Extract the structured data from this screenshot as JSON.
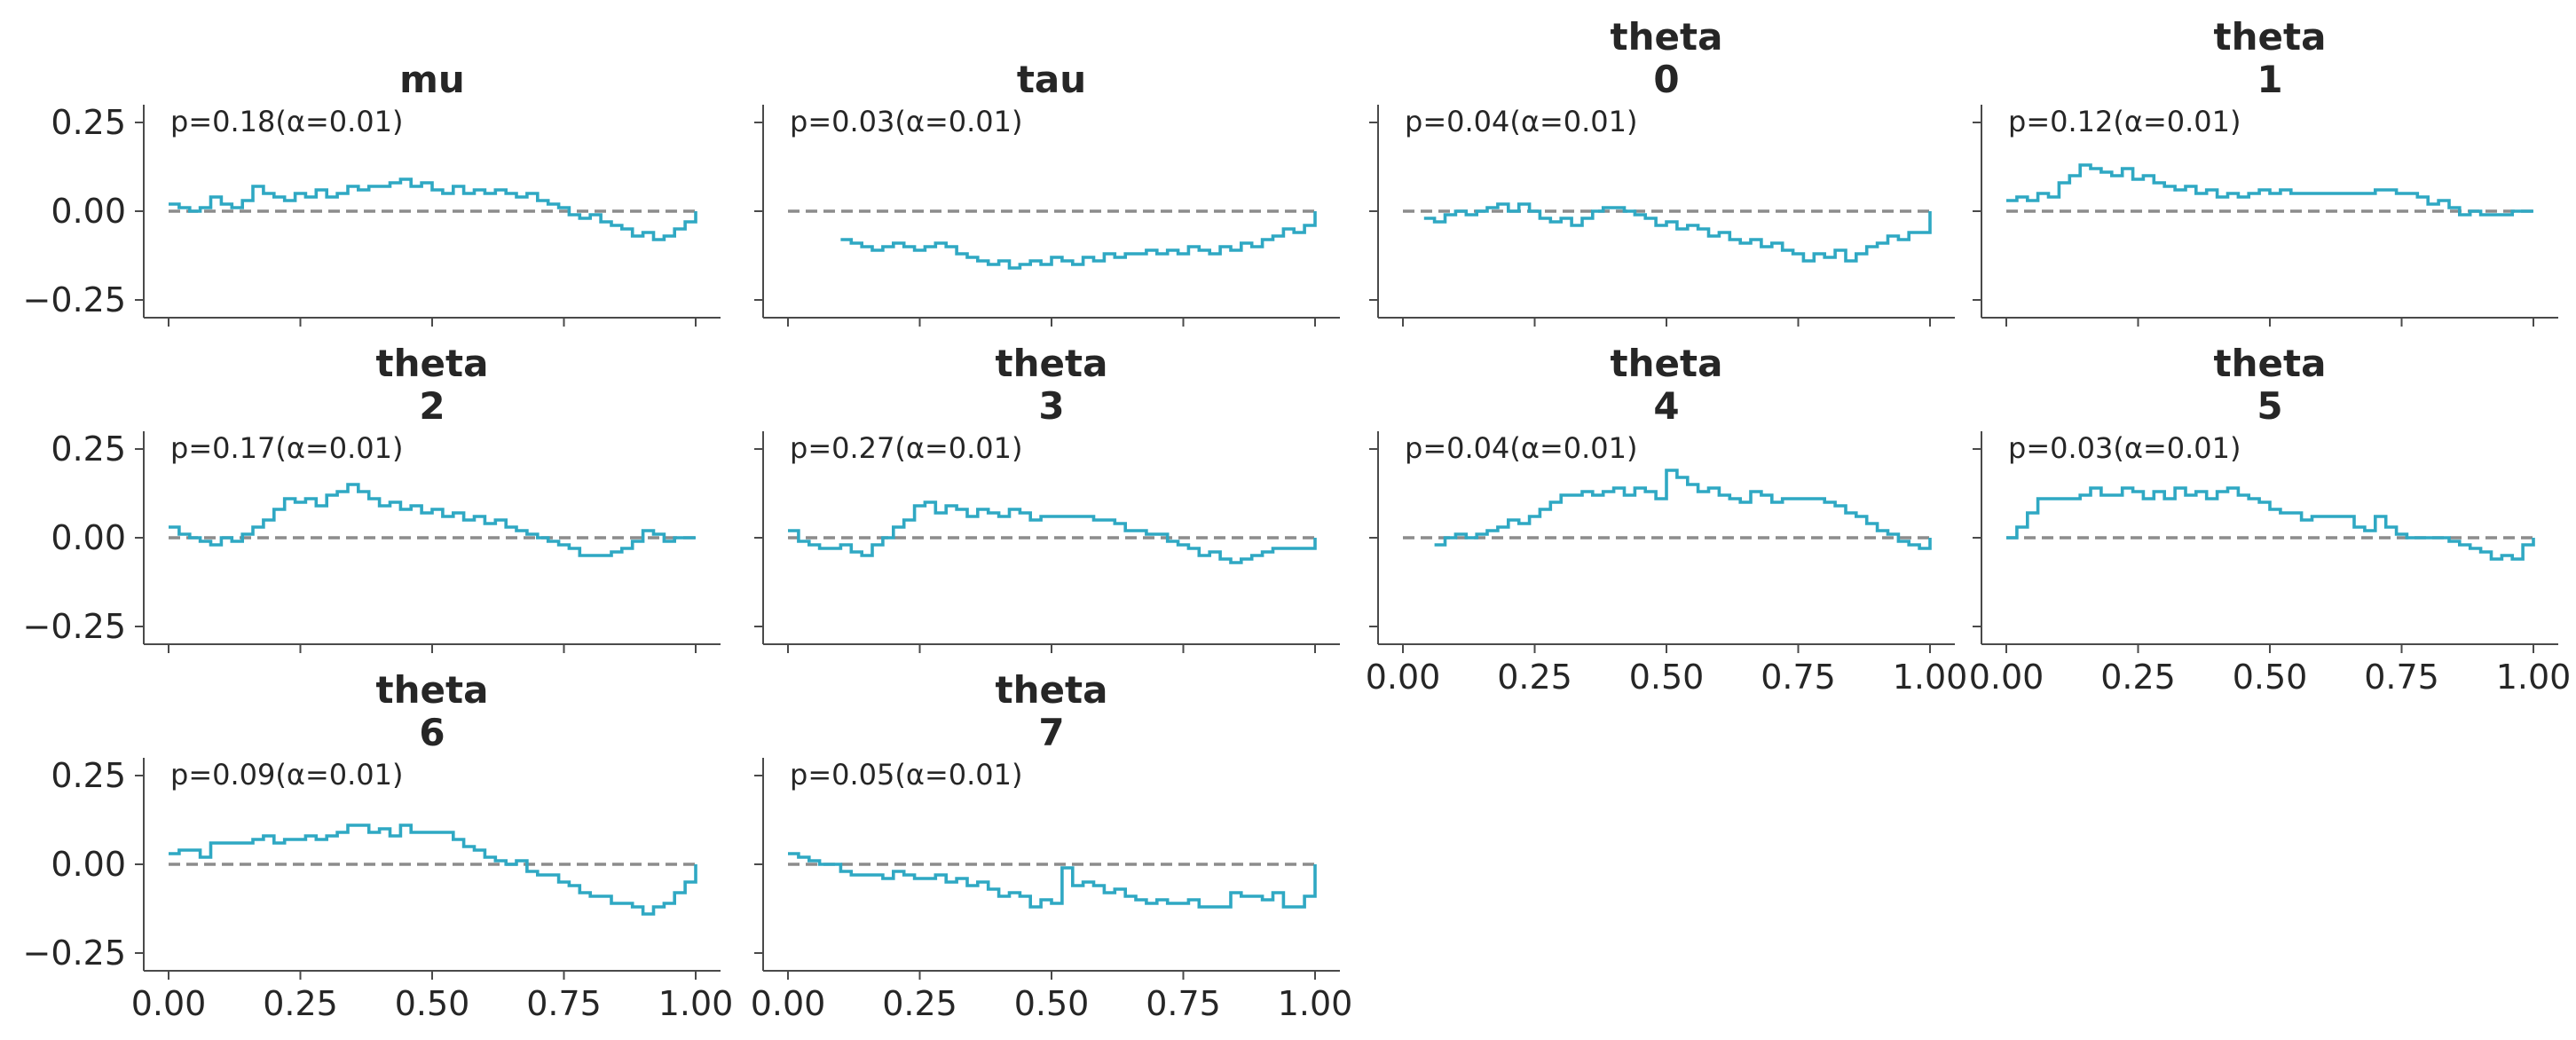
{
  "chart_data": {
    "type": "line",
    "step": true,
    "accent_color": "#2fa8c3",
    "reference_line": {
      "y": 0,
      "color": "#8c8c8c",
      "style": "dashed"
    },
    "xlim": [
      0,
      1
    ],
    "ylim": [
      -0.3,
      0.3
    ],
    "x_ticks": [
      "0.00",
      "0.25",
      "0.50",
      "0.75",
      "1.00"
    ],
    "y_ticks": [
      "0.25",
      "0.00",
      "−0.25"
    ],
    "panels": [
      {
        "title_lines": [
          "mu"
        ],
        "stat": "p=0.18(α=0.01)",
        "x": [
          0.0,
          0.02,
          0.04,
          0.06,
          0.08,
          0.1,
          0.12,
          0.14,
          0.16,
          0.18,
          0.2,
          0.22,
          0.24,
          0.26,
          0.28,
          0.3,
          0.32,
          0.34,
          0.36,
          0.38,
          0.4,
          0.42,
          0.44,
          0.46,
          0.48,
          0.5,
          0.52,
          0.54,
          0.56,
          0.58,
          0.6,
          0.62,
          0.64,
          0.66,
          0.68,
          0.7,
          0.72,
          0.74,
          0.76,
          0.78,
          0.8,
          0.82,
          0.84,
          0.86,
          0.88,
          0.9,
          0.92,
          0.94,
          0.96,
          0.98,
          1.0
        ],
        "y": [
          0.02,
          0.01,
          0.0,
          0.01,
          0.04,
          0.02,
          0.01,
          0.03,
          0.07,
          0.05,
          0.04,
          0.03,
          0.05,
          0.04,
          0.06,
          0.04,
          0.05,
          0.07,
          0.06,
          0.07,
          0.07,
          0.08,
          0.09,
          0.07,
          0.08,
          0.06,
          0.05,
          0.07,
          0.05,
          0.06,
          0.05,
          0.06,
          0.05,
          0.04,
          0.05,
          0.03,
          0.02,
          0.01,
          -0.01,
          -0.02,
          -0.01,
          -0.03,
          -0.04,
          -0.05,
          -0.07,
          -0.06,
          -0.08,
          -0.07,
          -0.05,
          -0.03,
          0.0
        ]
      },
      {
        "title_lines": [
          "tau"
        ],
        "stat": "p=0.03(α=0.01)",
        "x": [
          0.1,
          0.12,
          0.14,
          0.16,
          0.18,
          0.2,
          0.22,
          0.24,
          0.26,
          0.28,
          0.3,
          0.32,
          0.34,
          0.36,
          0.38,
          0.4,
          0.42,
          0.44,
          0.46,
          0.48,
          0.5,
          0.52,
          0.54,
          0.56,
          0.58,
          0.6,
          0.62,
          0.64,
          0.66,
          0.68,
          0.7,
          0.72,
          0.74,
          0.76,
          0.78,
          0.8,
          0.82,
          0.84,
          0.86,
          0.88,
          0.9,
          0.92,
          0.94,
          0.96,
          0.98,
          1.0
        ],
        "y": [
          -0.08,
          -0.09,
          -0.1,
          -0.11,
          -0.1,
          -0.09,
          -0.1,
          -0.11,
          -0.1,
          -0.09,
          -0.1,
          -0.12,
          -0.13,
          -0.14,
          -0.15,
          -0.14,
          -0.16,
          -0.15,
          -0.14,
          -0.15,
          -0.13,
          -0.14,
          -0.15,
          -0.13,
          -0.14,
          -0.12,
          -0.13,
          -0.12,
          -0.12,
          -0.11,
          -0.12,
          -0.11,
          -0.12,
          -0.1,
          -0.11,
          -0.12,
          -0.1,
          -0.11,
          -0.09,
          -0.1,
          -0.08,
          -0.07,
          -0.05,
          -0.06,
          -0.04,
          0.0
        ]
      },
      {
        "title_lines": [
          "theta",
          "0"
        ],
        "stat": "p=0.04(α=0.01)",
        "x": [
          0.04,
          0.06,
          0.08,
          0.1,
          0.12,
          0.14,
          0.16,
          0.18,
          0.2,
          0.22,
          0.24,
          0.26,
          0.28,
          0.3,
          0.32,
          0.34,
          0.36,
          0.38,
          0.4,
          0.42,
          0.44,
          0.46,
          0.48,
          0.5,
          0.52,
          0.54,
          0.56,
          0.58,
          0.6,
          0.62,
          0.64,
          0.66,
          0.68,
          0.7,
          0.72,
          0.74,
          0.76,
          0.78,
          0.8,
          0.82,
          0.84,
          0.86,
          0.88,
          0.9,
          0.92,
          0.94,
          0.96,
          0.98,
          1.0
        ],
        "y": [
          -0.02,
          -0.03,
          -0.01,
          0.0,
          -0.01,
          0.0,
          0.01,
          0.02,
          0.0,
          0.02,
          0.0,
          -0.02,
          -0.03,
          -0.02,
          -0.04,
          -0.02,
          0.0,
          0.01,
          0.01,
          0.0,
          -0.01,
          -0.02,
          -0.04,
          -0.03,
          -0.05,
          -0.04,
          -0.05,
          -0.07,
          -0.06,
          -0.08,
          -0.09,
          -0.08,
          -0.1,
          -0.09,
          -0.11,
          -0.12,
          -0.14,
          -0.12,
          -0.13,
          -0.11,
          -0.14,
          -0.12,
          -0.1,
          -0.09,
          -0.07,
          -0.08,
          -0.06,
          -0.06,
          0.0
        ]
      },
      {
        "title_lines": [
          "theta",
          "1"
        ],
        "stat": "p=0.12(α=0.01)",
        "x": [
          0.0,
          0.02,
          0.04,
          0.06,
          0.08,
          0.1,
          0.12,
          0.14,
          0.16,
          0.18,
          0.2,
          0.22,
          0.24,
          0.26,
          0.28,
          0.3,
          0.32,
          0.34,
          0.36,
          0.38,
          0.4,
          0.42,
          0.44,
          0.46,
          0.48,
          0.5,
          0.52,
          0.54,
          0.56,
          0.58,
          0.6,
          0.62,
          0.64,
          0.66,
          0.68,
          0.7,
          0.72,
          0.74,
          0.76,
          0.78,
          0.8,
          0.82,
          0.84,
          0.86,
          0.88,
          0.9,
          0.92,
          0.94,
          0.96,
          0.98,
          1.0
        ],
        "y": [
          0.03,
          0.04,
          0.03,
          0.05,
          0.04,
          0.08,
          0.1,
          0.13,
          0.12,
          0.11,
          0.1,
          0.12,
          0.09,
          0.1,
          0.08,
          0.07,
          0.06,
          0.07,
          0.05,
          0.06,
          0.04,
          0.05,
          0.04,
          0.05,
          0.06,
          0.05,
          0.06,
          0.05,
          0.05,
          0.05,
          0.05,
          0.05,
          0.05,
          0.05,
          0.05,
          0.06,
          0.06,
          0.05,
          0.05,
          0.04,
          0.02,
          0.03,
          0.01,
          -0.01,
          0.0,
          -0.01,
          -0.01,
          -0.01,
          0.0,
          0.0,
          0.0
        ]
      },
      {
        "title_lines": [
          "theta",
          "2"
        ],
        "stat": "p=0.17(α=0.01)",
        "x": [
          0.0,
          0.02,
          0.04,
          0.06,
          0.08,
          0.1,
          0.12,
          0.14,
          0.16,
          0.18,
          0.2,
          0.22,
          0.24,
          0.26,
          0.28,
          0.3,
          0.32,
          0.34,
          0.36,
          0.38,
          0.4,
          0.42,
          0.44,
          0.46,
          0.48,
          0.5,
          0.52,
          0.54,
          0.56,
          0.58,
          0.6,
          0.62,
          0.64,
          0.66,
          0.68,
          0.7,
          0.72,
          0.74,
          0.76,
          0.78,
          0.8,
          0.82,
          0.84,
          0.86,
          0.88,
          0.9,
          0.92,
          0.94,
          0.96,
          0.98,
          1.0
        ],
        "y": [
          0.03,
          0.01,
          0.0,
          -0.01,
          -0.02,
          0.0,
          -0.01,
          0.01,
          0.03,
          0.05,
          0.08,
          0.11,
          0.1,
          0.11,
          0.09,
          0.12,
          0.13,
          0.15,
          0.13,
          0.11,
          0.09,
          0.1,
          0.08,
          0.09,
          0.07,
          0.08,
          0.06,
          0.07,
          0.05,
          0.06,
          0.04,
          0.05,
          0.03,
          0.02,
          0.01,
          0.0,
          -0.01,
          -0.02,
          -0.03,
          -0.05,
          -0.05,
          -0.05,
          -0.04,
          -0.03,
          -0.01,
          0.02,
          0.01,
          -0.01,
          0.0,
          0.0,
          0.0
        ]
      },
      {
        "title_lines": [
          "theta",
          "3"
        ],
        "stat": "p=0.27(α=0.01)",
        "x": [
          0.0,
          0.02,
          0.04,
          0.06,
          0.08,
          0.1,
          0.12,
          0.14,
          0.16,
          0.18,
          0.2,
          0.22,
          0.24,
          0.26,
          0.28,
          0.3,
          0.32,
          0.34,
          0.36,
          0.38,
          0.4,
          0.42,
          0.44,
          0.46,
          0.48,
          0.5,
          0.52,
          0.54,
          0.56,
          0.58,
          0.6,
          0.62,
          0.64,
          0.66,
          0.68,
          0.7,
          0.72,
          0.74,
          0.76,
          0.78,
          0.8,
          0.82,
          0.84,
          0.86,
          0.88,
          0.9,
          0.92,
          0.94,
          0.96,
          0.98,
          1.0
        ],
        "y": [
          0.02,
          -0.01,
          -0.02,
          -0.03,
          -0.03,
          -0.02,
          -0.04,
          -0.05,
          -0.02,
          0.0,
          0.03,
          0.05,
          0.09,
          0.1,
          0.07,
          0.09,
          0.08,
          0.06,
          0.08,
          0.07,
          0.06,
          0.08,
          0.07,
          0.05,
          0.06,
          0.06,
          0.06,
          0.06,
          0.06,
          0.05,
          0.05,
          0.04,
          0.02,
          0.02,
          0.01,
          0.01,
          -0.01,
          -0.02,
          -0.03,
          -0.05,
          -0.04,
          -0.06,
          -0.07,
          -0.06,
          -0.05,
          -0.04,
          -0.03,
          -0.03,
          -0.03,
          -0.03,
          0.0
        ]
      },
      {
        "title_lines": [
          "theta",
          "4"
        ],
        "stat": "p=0.04(α=0.01)",
        "x": [
          0.06,
          0.08,
          0.1,
          0.12,
          0.14,
          0.16,
          0.18,
          0.2,
          0.22,
          0.24,
          0.26,
          0.28,
          0.3,
          0.32,
          0.34,
          0.36,
          0.38,
          0.4,
          0.42,
          0.44,
          0.46,
          0.48,
          0.5,
          0.52,
          0.54,
          0.56,
          0.58,
          0.6,
          0.62,
          0.64,
          0.66,
          0.68,
          0.7,
          0.72,
          0.74,
          0.76,
          0.78,
          0.8,
          0.82,
          0.84,
          0.86,
          0.88,
          0.9,
          0.92,
          0.94,
          0.96,
          0.98,
          1.0
        ],
        "y": [
          -0.02,
          0.0,
          0.01,
          0.0,
          0.01,
          0.02,
          0.03,
          0.05,
          0.04,
          0.06,
          0.08,
          0.1,
          0.12,
          0.12,
          0.13,
          0.12,
          0.13,
          0.14,
          0.12,
          0.14,
          0.13,
          0.11,
          0.19,
          0.17,
          0.15,
          0.13,
          0.14,
          0.12,
          0.11,
          0.1,
          0.13,
          0.12,
          0.1,
          0.11,
          0.11,
          0.11,
          0.11,
          0.1,
          0.09,
          0.07,
          0.06,
          0.04,
          0.02,
          0.01,
          -0.01,
          -0.02,
          -0.03,
          0.0
        ]
      },
      {
        "title_lines": [
          "theta",
          "5"
        ],
        "stat": "p=0.03(α=0.01)",
        "x": [
          0.0,
          0.02,
          0.04,
          0.06,
          0.08,
          0.1,
          0.12,
          0.14,
          0.16,
          0.18,
          0.2,
          0.22,
          0.24,
          0.26,
          0.28,
          0.3,
          0.32,
          0.34,
          0.36,
          0.38,
          0.4,
          0.42,
          0.44,
          0.46,
          0.48,
          0.5,
          0.52,
          0.54,
          0.56,
          0.58,
          0.6,
          0.62,
          0.64,
          0.66,
          0.68,
          0.7,
          0.72,
          0.74,
          0.76,
          0.78,
          0.8,
          0.82,
          0.84,
          0.86,
          0.88,
          0.9,
          0.92,
          0.94,
          0.96,
          0.98,
          1.0
        ],
        "y": [
          0.0,
          0.03,
          0.07,
          0.11,
          0.11,
          0.11,
          0.11,
          0.12,
          0.14,
          0.12,
          0.12,
          0.14,
          0.13,
          0.11,
          0.13,
          0.11,
          0.14,
          0.12,
          0.13,
          0.11,
          0.13,
          0.14,
          0.12,
          0.11,
          0.1,
          0.08,
          0.07,
          0.07,
          0.05,
          0.06,
          0.06,
          0.06,
          0.06,
          0.03,
          0.02,
          0.06,
          0.03,
          0.01,
          0.0,
          0.0,
          0.0,
          0.0,
          -0.01,
          -0.02,
          -0.03,
          -0.04,
          -0.06,
          -0.05,
          -0.06,
          -0.02,
          0.0
        ]
      },
      {
        "title_lines": [
          "theta",
          "6"
        ],
        "stat": "p=0.09(α=0.01)",
        "x": [
          0.0,
          0.02,
          0.04,
          0.06,
          0.08,
          0.1,
          0.12,
          0.14,
          0.16,
          0.18,
          0.2,
          0.22,
          0.24,
          0.26,
          0.28,
          0.3,
          0.32,
          0.34,
          0.36,
          0.38,
          0.4,
          0.42,
          0.44,
          0.46,
          0.48,
          0.5,
          0.52,
          0.54,
          0.56,
          0.58,
          0.6,
          0.62,
          0.64,
          0.66,
          0.68,
          0.7,
          0.72,
          0.74,
          0.76,
          0.78,
          0.8,
          0.82,
          0.84,
          0.86,
          0.88,
          0.9,
          0.92,
          0.94,
          0.96,
          0.98,
          1.0
        ],
        "y": [
          0.03,
          0.04,
          0.04,
          0.02,
          0.06,
          0.06,
          0.06,
          0.06,
          0.07,
          0.08,
          0.06,
          0.07,
          0.07,
          0.08,
          0.07,
          0.08,
          0.09,
          0.11,
          0.11,
          0.09,
          0.1,
          0.08,
          0.11,
          0.09,
          0.09,
          0.09,
          0.09,
          0.07,
          0.05,
          0.04,
          0.02,
          0.01,
          0.0,
          0.01,
          -0.02,
          -0.03,
          -0.03,
          -0.05,
          -0.06,
          -0.08,
          -0.09,
          -0.09,
          -0.11,
          -0.11,
          -0.12,
          -0.14,
          -0.12,
          -0.11,
          -0.08,
          -0.05,
          0.0
        ]
      },
      {
        "title_lines": [
          "theta",
          "7"
        ],
        "stat": "p=0.05(α=0.01)",
        "x": [
          0.0,
          0.02,
          0.04,
          0.06,
          0.08,
          0.1,
          0.12,
          0.14,
          0.16,
          0.18,
          0.2,
          0.22,
          0.24,
          0.26,
          0.28,
          0.3,
          0.32,
          0.34,
          0.36,
          0.38,
          0.4,
          0.42,
          0.44,
          0.46,
          0.48,
          0.5,
          0.52,
          0.54,
          0.56,
          0.58,
          0.6,
          0.62,
          0.64,
          0.66,
          0.68,
          0.7,
          0.72,
          0.74,
          0.76,
          0.78,
          0.8,
          0.82,
          0.84,
          0.86,
          0.88,
          0.9,
          0.92,
          0.94,
          0.96,
          0.98,
          1.0
        ],
        "y": [
          0.03,
          0.02,
          0.01,
          0.0,
          0.0,
          -0.02,
          -0.03,
          -0.03,
          -0.03,
          -0.04,
          -0.02,
          -0.03,
          -0.04,
          -0.04,
          -0.03,
          -0.05,
          -0.04,
          -0.06,
          -0.05,
          -0.07,
          -0.09,
          -0.08,
          -0.09,
          -0.12,
          -0.1,
          -0.11,
          -0.01,
          -0.06,
          -0.05,
          -0.06,
          -0.08,
          -0.07,
          -0.09,
          -0.1,
          -0.11,
          -0.1,
          -0.11,
          -0.11,
          -0.1,
          -0.12,
          -0.12,
          -0.12,
          -0.08,
          -0.09,
          -0.09,
          -0.1,
          -0.08,
          -0.12,
          -0.12,
          -0.09,
          0.0
        ]
      }
    ]
  }
}
